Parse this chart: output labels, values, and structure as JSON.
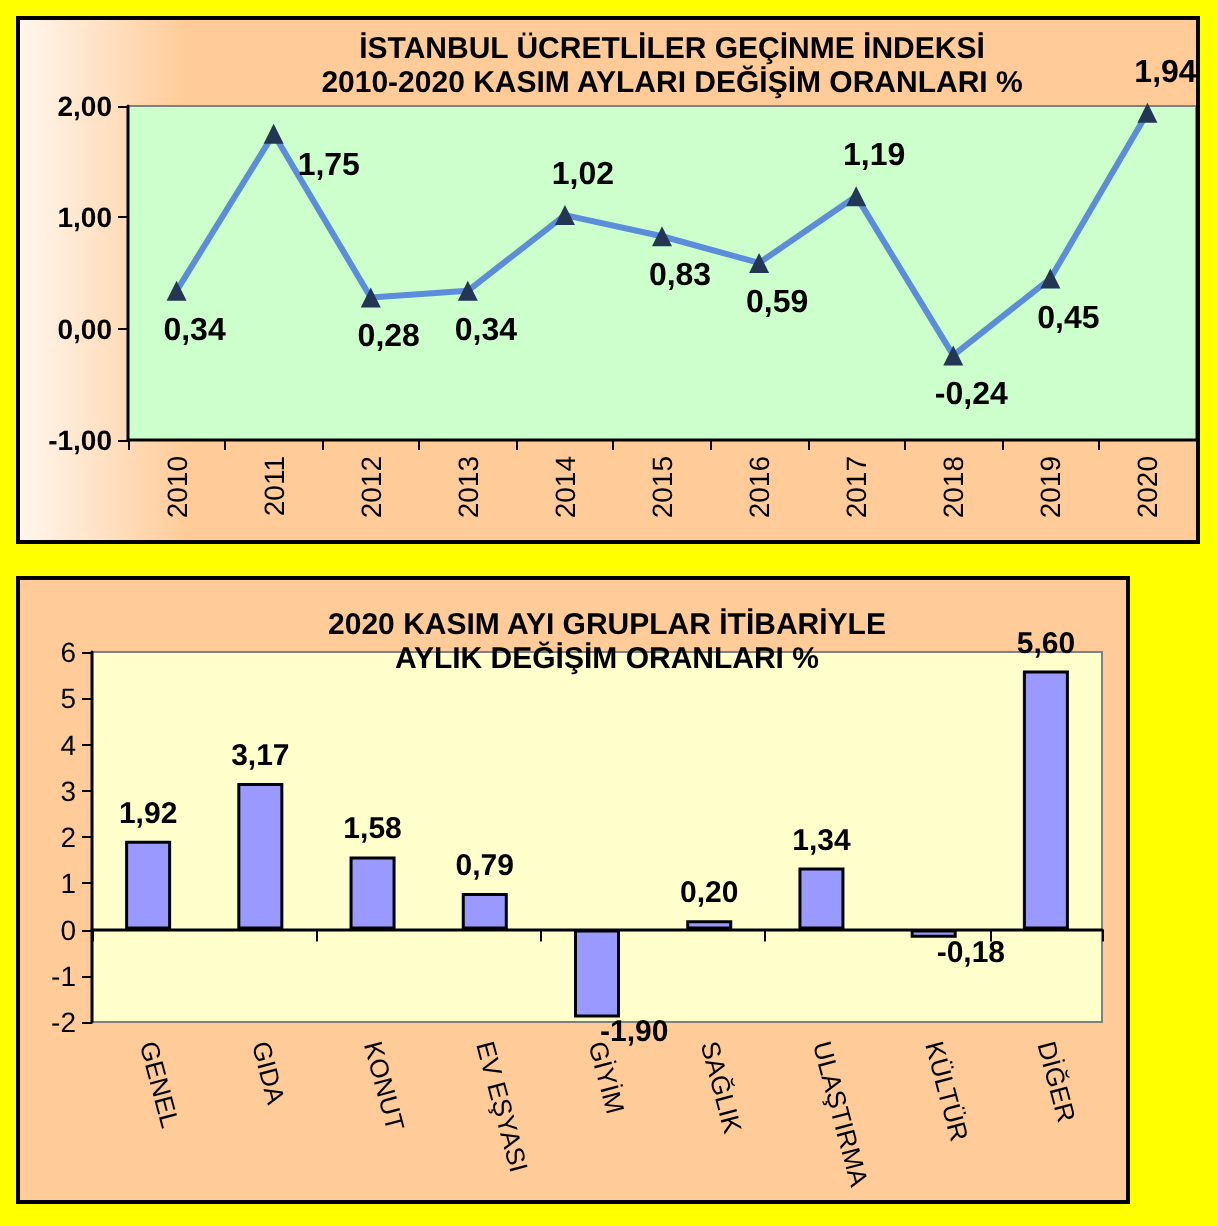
{
  "chart_data": [
    {
      "type": "line",
      "title": "İSTANBUL ÜCRETLİLER GEÇİNME İNDEKSİ",
      "subtitle": "2010-2020 KASIM AYLARI DEĞİŞİM ORANLARI %",
      "categories": [
        "2010",
        "2011",
        "2012",
        "2013",
        "2014",
        "2015",
        "2016",
        "2017",
        "2018",
        "2019",
        "2020"
      ],
      "values": [
        0.34,
        1.75,
        0.28,
        0.34,
        1.02,
        0.83,
        0.59,
        1.19,
        -0.24,
        0.45,
        1.94
      ],
      "value_labels": [
        "0,34",
        "1,75",
        "0,28",
        "0,34",
        "1,02",
        "0,83",
        "0,59",
        "1,19",
        "-0,24",
        "0,45",
        "1,94"
      ],
      "color": "#5b8ddb",
      "marker": "triangle",
      "line_style": "solid",
      "ylim": [
        -1,
        2
      ],
      "yticks": [
        {
          "value": -1,
          "label": "-1,00"
        },
        {
          "value": 0,
          "label": "0,00"
        },
        {
          "value": 1,
          "label": "1,00"
        },
        {
          "value": 2,
          "label": "2,00"
        }
      ]
    },
    {
      "type": "bar",
      "title": "2020 KASIM AYI GRUPLAR İTİBARİYLE",
      "subtitle": "AYLIK DEĞİŞİM ORANLARI %",
      "categories": [
        "GENEL",
        "GIDA",
        "KONUT",
        "EV EŞYASI",
        "GİYİM",
        "SAĞLIK",
        "ULAŞTIRMA",
        "KÜLTÜR",
        "DİĞER"
      ],
      "values": [
        1.92,
        3.17,
        1.58,
        0.79,
        -1.9,
        0.2,
        1.34,
        -0.18,
        5.6
      ],
      "value_labels": [
        "1,92",
        "3,17",
        "1,58",
        "0,79",
        "-1,90",
        "0,20",
        "1,34",
        "-0,18",
        "5,60"
      ],
      "color": "#9999ff",
      "ylim": [
        -2,
        6
      ],
      "yticks": [
        -2,
        -1,
        0,
        1,
        2,
        3,
        4,
        5,
        6
      ]
    }
  ]
}
